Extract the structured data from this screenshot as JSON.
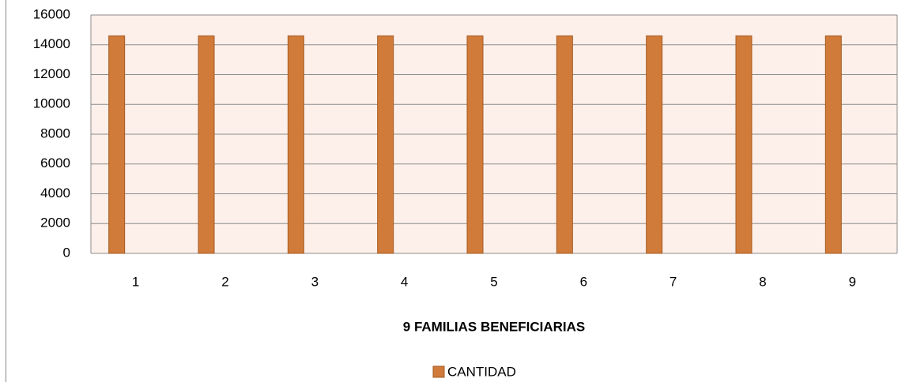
{
  "chart_data": {
    "type": "bar",
    "x_label": "9 FAMILIAS BENEFICIARIAS",
    "categories": [
      "1",
      "2",
      "3",
      "4",
      "5",
      "6",
      "7",
      "8",
      "9"
    ],
    "series": [
      {
        "name": "CANTIDAD",
        "color": "#d07b3a",
        "values": [
          14600,
          14600,
          14600,
          14600,
          14600,
          14600,
          14600,
          14600,
          14600
        ]
      }
    ],
    "ylim": [
      0,
      16000
    ],
    "yticks": [
      0,
      2000,
      4000,
      6000,
      8000,
      10000,
      12000,
      14000,
      16000
    ],
    "grid": true,
    "legend": "bottom"
  }
}
